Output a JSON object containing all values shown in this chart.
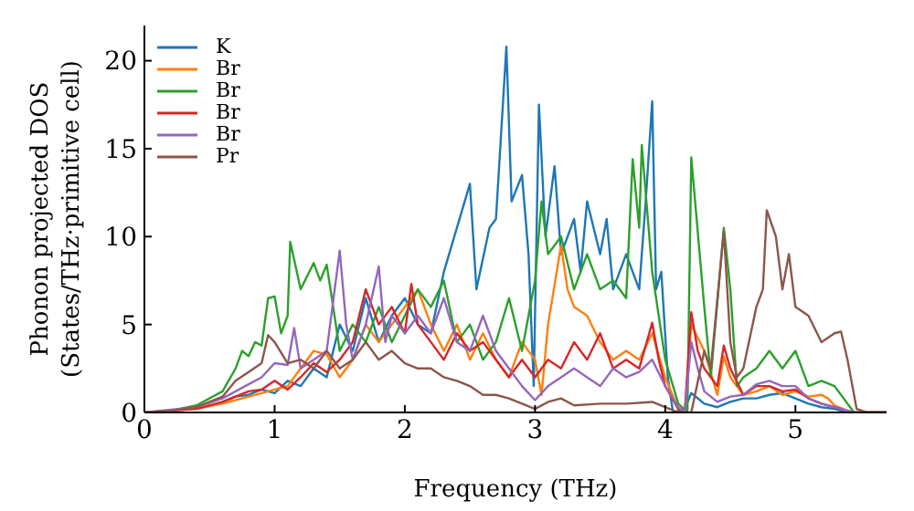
{
  "chart_data": {
    "type": "line",
    "xlabel": "Frequency (THz)",
    "ylabel": "Phonon projected DOS\n(States/THz·primitive cell)",
    "xlim": [
      0,
      5.7
    ],
    "xticks": [
      0,
      1,
      2,
      3,
      4,
      5
    ],
    "ylim": [
      0,
      22
    ],
    "yticks": [
      0,
      5,
      10,
      15,
      20
    ],
    "grid": false,
    "legend": "top left",
    "marker": "none",
    "line_style": "solid",
    "series": [
      {
        "name": "K",
        "color": "#1f77b4",
        "x": [
          0.6,
          0.7,
          0.8,
          0.9,
          1.0,
          1.1,
          1.2,
          1.3,
          1.4,
          1.5,
          1.6,
          1.7,
          1.8,
          1.9,
          2.0,
          2.1,
          2.2,
          2.3,
          2.4,
          2.5,
          2.55,
          2.65,
          2.7,
          2.78,
          2.82,
          2.9,
          2.95,
          2.99,
          3.03,
          3.08,
          3.15,
          3.2,
          3.3,
          3.35,
          3.4,
          3.5,
          3.55,
          3.6,
          3.7,
          3.8,
          3.85,
          3.9,
          3.93,
          3.97,
          4.02,
          4.06,
          4.15,
          4.2,
          4.3,
          4.4,
          4.5,
          4.6,
          4.7,
          4.8,
          4.9,
          5.0,
          5.1,
          5.2,
          5.3,
          5.4,
          5.7
        ],
        "values": [
          0.6,
          0.9,
          1.0,
          1.3,
          1.1,
          1.8,
          1.5,
          2.5,
          2.0,
          5,
          3.5,
          6.5,
          4,
          5.5,
          6.5,
          5,
          4.5,
          8,
          10.5,
          13,
          7,
          10.5,
          11,
          20.8,
          12,
          13.5,
          9,
          1.5,
          17.5,
          10,
          14,
          9,
          11,
          8,
          12,
          9,
          11,
          7,
          9,
          7,
          12,
          17.7,
          7,
          8,
          2,
          0,
          0.2,
          1.1,
          0.5,
          0.3,
          0.6,
          0.8,
          0.8,
          1,
          1.1,
          0.8,
          0.5,
          0.3,
          0.2,
          0,
          0
        ]
      },
      {
        "name": "Br",
        "color": "#ff7f0e",
        "x": [
          0,
          0.4,
          0.6,
          0.8,
          0.9,
          1.0,
          1.1,
          1.2,
          1.3,
          1.4,
          1.5,
          1.6,
          1.7,
          1.8,
          1.9,
          2.0,
          2.1,
          2.2,
          2.3,
          2.4,
          2.5,
          2.6,
          2.7,
          2.8,
          2.9,
          3.0,
          3.05,
          3.1,
          3.2,
          3.25,
          3.3,
          3.4,
          3.5,
          3.6,
          3.7,
          3.8,
          3.9,
          4.0,
          4.1,
          4.15,
          4.2,
          4.3,
          4.4,
          4.45,
          4.5,
          4.6,
          4.7,
          4.8,
          4.9,
          5.0,
          5.1,
          5.2,
          5.25,
          5.3,
          5.4,
          5.45,
          5.7
        ],
        "values": [
          0,
          0.2,
          0.5,
          0.9,
          1.1,
          1.3,
          1.5,
          2.5,
          3.5,
          3.3,
          2,
          3,
          5,
          4,
          5,
          6,
          7,
          5,
          3.5,
          5,
          3,
          4.5,
          3,
          2,
          4,
          3,
          1,
          5,
          9.5,
          7,
          6,
          5.5,
          4,
          3,
          3.5,
          3,
          4.5,
          2,
          0.2,
          0,
          5,
          3.5,
          1,
          3.2,
          2,
          1,
          1.2,
          1.5,
          1,
          1.2,
          0.9,
          1,
          0.8,
          0.4,
          0.1,
          0,
          0
        ]
      },
      {
        "name": "Br",
        "color": "#2ca02c",
        "x": [
          0,
          0.2,
          0.4,
          0.6,
          0.7,
          0.75,
          0.8,
          0.85,
          0.9,
          0.95,
          1.0,
          1.05,
          1.1,
          1.12,
          1.2,
          1.3,
          1.35,
          1.4,
          1.45,
          1.5,
          1.6,
          1.7,
          1.8,
          1.9,
          2.0,
          2.1,
          2.2,
          2.3,
          2.4,
          2.5,
          2.6,
          2.7,
          2.8,
          2.9,
          3.0,
          3.05,
          3.1,
          3.2,
          3.3,
          3.4,
          3.5,
          3.6,
          3.7,
          3.75,
          3.8,
          3.82,
          3.9,
          4.0,
          4.1,
          4.17,
          4.2,
          4.3,
          4.35,
          4.45,
          4.5,
          4.55,
          4.6,
          4.7,
          4.8,
          4.9,
          5.0,
          5.1,
          5.2,
          5.3,
          5.4,
          5.45,
          5.7
        ],
        "values": [
          0,
          0.1,
          0.4,
          1.2,
          2.5,
          3.5,
          3.2,
          4.0,
          3.8,
          6.5,
          6.6,
          4.5,
          5.5,
          9.7,
          7.0,
          8.5,
          7.5,
          8.4,
          6.0,
          3.5,
          5,
          4,
          6,
          4,
          5.5,
          7,
          6,
          7.5,
          4,
          5,
          3,
          4,
          6.5,
          3.5,
          7.5,
          12,
          9,
          10,
          7,
          9,
          7,
          7.5,
          6.5,
          14.4,
          10.5,
          15.2,
          8,
          3,
          0.5,
          0,
          14.5,
          6,
          2,
          10.5,
          7,
          1.5,
          2,
          2.5,
          3.5,
          2.5,
          3.5,
          1.5,
          1.8,
          1.5,
          0.5,
          0,
          0
        ]
      },
      {
        "name": "Br",
        "color": "#d62728",
        "x": [
          0,
          0.4,
          0.6,
          0.8,
          0.9,
          1.0,
          1.1,
          1.2,
          1.3,
          1.4,
          1.5,
          1.6,
          1.7,
          1.8,
          1.9,
          2.0,
          2.05,
          2.1,
          2.2,
          2.3,
          2.4,
          2.5,
          2.6,
          2.7,
          2.8,
          2.9,
          3.0,
          3.1,
          3.2,
          3.3,
          3.4,
          3.5,
          3.6,
          3.7,
          3.8,
          3.9,
          3.95,
          4.0,
          4.1,
          4.15,
          4.2,
          4.25,
          4.3,
          4.4,
          4.45,
          4.5,
          4.6,
          4.7,
          4.8,
          4.9,
          5.0,
          5.1,
          5.2,
          5.3,
          5.4,
          5.45,
          5.7
        ],
        "values": [
          0,
          0.2,
          0.6,
          1.2,
          1.3,
          1.8,
          1.3,
          2,
          2.8,
          2.3,
          3,
          4,
          7,
          5,
          6,
          4.5,
          7.3,
          5,
          4,
          3,
          4.5,
          3.5,
          4,
          3,
          2,
          3,
          2,
          3,
          2.5,
          4,
          3,
          4.5,
          2.5,
          3,
          2.5,
          5.1,
          3,
          1.5,
          0.2,
          0,
          5.7,
          3.5,
          2.5,
          1.5,
          3.8,
          2.5,
          1,
          1.5,
          1.5,
          1.2,
          1.3,
          0.8,
          0.5,
          0.3,
          0.1,
          0,
          0
        ]
      },
      {
        "name": "Br",
        "color": "#9467bd",
        "x": [
          0,
          0.4,
          0.6,
          0.8,
          0.9,
          1.0,
          1.1,
          1.15,
          1.2,
          1.3,
          1.4,
          1.5,
          1.55,
          1.6,
          1.7,
          1.8,
          1.85,
          1.9,
          2.0,
          2.1,
          2.2,
          2.3,
          2.4,
          2.5,
          2.6,
          2.7,
          2.8,
          2.9,
          3.0,
          3.1,
          3.2,
          3.3,
          3.4,
          3.5,
          3.6,
          3.7,
          3.8,
          3.9,
          4.0,
          4.1,
          4.15,
          4.2,
          4.25,
          4.3,
          4.4,
          4.5,
          4.6,
          4.7,
          4.8,
          4.9,
          5.0,
          5.1,
          5.2,
          5.3,
          5.4,
          5.45,
          5.7
        ],
        "values": [
          0,
          0.3,
          0.8,
          1.6,
          2,
          2.8,
          2.7,
          4.8,
          2.5,
          3,
          3.5,
          9.2,
          5,
          3,
          5,
          8.3,
          4,
          5.5,
          4.5,
          5.5,
          4.5,
          6.5,
          4,
          3.5,
          5.5,
          3.5,
          2.5,
          1.5,
          0.7,
          1.5,
          2,
          2.5,
          2,
          1.5,
          2.5,
          2,
          2.3,
          3,
          1.5,
          0.3,
          0,
          4,
          2.5,
          1.2,
          0.6,
          0.9,
          1,
          1.6,
          1.8,
          1.5,
          1.5,
          0.8,
          0.5,
          0.3,
          0.1,
          0,
          0
        ]
      },
      {
        "name": "Pr",
        "color": "#8c564b",
        "x": [
          0,
          0.2,
          0.4,
          0.6,
          0.7,
          0.8,
          0.9,
          0.95,
          1.0,
          1.1,
          1.2,
          1.3,
          1.4,
          1.5,
          1.6,
          1.7,
          1.8,
          1.9,
          2.0,
          2.1,
          2.2,
          2.3,
          2.4,
          2.5,
          2.6,
          2.7,
          2.8,
          2.9,
          3.0,
          3.1,
          3.2,
          3.3,
          3.5,
          3.7,
          3.9,
          4.0,
          4.1,
          4.2,
          4.3,
          4.35,
          4.45,
          4.5,
          4.55,
          4.6,
          4.7,
          4.75,
          4.78,
          4.85,
          4.9,
          4.95,
          5.0,
          5.1,
          5.2,
          5.3,
          5.35,
          5.4,
          5.47,
          5.55,
          5.7
        ],
        "values": [
          0,
          0.1,
          0.3,
          0.9,
          1.8,
          2.3,
          2.8,
          4.4,
          4.0,
          2.8,
          3,
          2.5,
          3.5,
          2.5,
          3,
          4,
          3,
          3.5,
          2.8,
          2.5,
          2.5,
          2,
          1.8,
          1.5,
          1,
          1,
          0.8,
          0.5,
          0.2,
          0.6,
          0.8,
          0.4,
          0.5,
          0.5,
          0.6,
          0.3,
          0,
          0,
          3.5,
          2.5,
          10.3,
          4,
          2,
          2.5,
          6,
          7,
          11.5,
          10,
          7,
          9,
          6,
          5.5,
          4,
          4.5,
          4.6,
          3,
          0.2,
          0,
          0
        ]
      }
    ]
  }
}
